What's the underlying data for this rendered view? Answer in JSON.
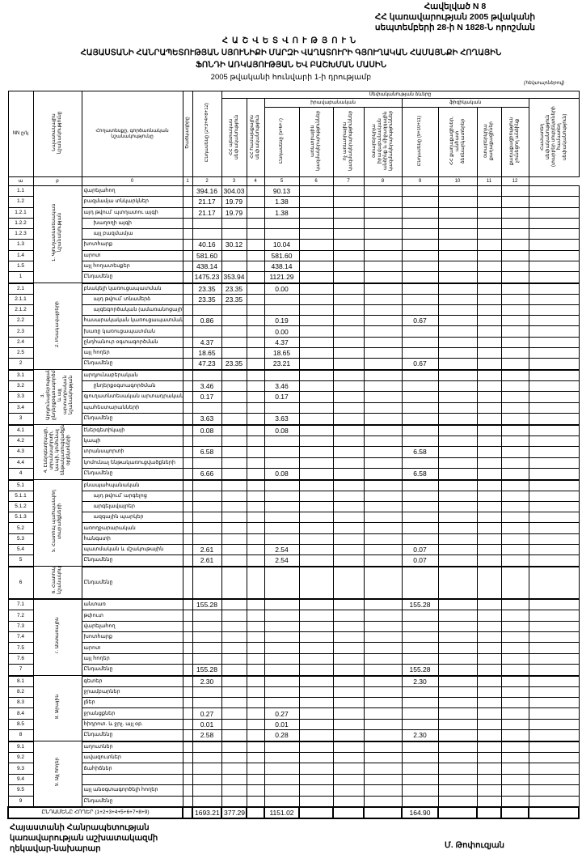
{
  "annex": {
    "line1": "Հավելված N 8",
    "line2": "ՀՀ կառավարության 2005 թվականի",
    "line3": "սեպտեմբերի 28-ի N 1828-Ն որոշման"
  },
  "title": {
    "main": "ՀԱՇՎԵՏՎՈՒԹՅՈՒՆ",
    "line2": "ՀԱՅԱՍՏԱՆԻ ՀԱՆՐԱՊԵՏՈՒԹՅԱՆ ՍՅՈՒՆԻՔԻ ՄԱՐԶԻ ՎԱՂԱՏՈՒՐԻ ԳՅՈՒՂԱԿԱՆ ՀԱՄԱՅՆՔԻ ՀՈՂԱՅԻՆ",
    "line3": "ՖՈՆԴԻ ԱՌԿԱՅՈՒԹՅԱՆ ԵՎ ԲԱՇԽՄԱՆ ՄԱՍԻՆ",
    "date": "2005 թվականի հունվարի 1-ի դրությամբ",
    "unit": "(հեկտարներով)"
  },
  "header": {
    "nn": "NN ը/կ",
    "purpose": "Նպատակային նշանակությունը",
    "landtype": "Հողատեսքը, գործառնական նշանակությունը",
    "c0": "Ծածկագիրը",
    "c1": "Ընդամենը (2+3+4+8+12)",
    "ownership": "Սեփականության ձևերը",
    "c2": "ՀՀ պետական սեփականություն",
    "c3": "ՀՀ համայնքային սեփականություն",
    "legal": "իրավաբանական",
    "physical": "ֆիզիկական",
    "c4": "Ընդամենը (5+6+7)",
    "c5": "առևտրային կազմակերպություններ",
    "c6": "ոչ առևտրային կազմակերպություններ",
    "c7": "օտարերկրյա իրավաբանական անձինք և միջազգային կազմակերպություններ",
    "c8": "Ընդամենը (9+10+11)",
    "c9": "ՀՀ քաղաքացիներ, անհատ ձեռնարկատերեր",
    "c10": "օտարերկրյա քաղաքացիներ",
    "c11": "քաղաքացիություն չունեցող անձինք",
    "c12": "Համատեղ սեփականություն (տարբեր սուբյեկտների համատեղ սեփականություն)",
    "numbers": [
      "ա",
      "բ",
      "0",
      "1",
      "2",
      "3",
      "4",
      "5",
      "6",
      "7",
      "8",
      "9",
      "10",
      "11",
      "12"
    ]
  },
  "groups": [
    {
      "label": "1. Գյուղատնտեսական նշանակության",
      "rows": [
        {
          "num": "1.1",
          "name": "վարելահող",
          "v": {
            "1": "394.16",
            "2": "304.03",
            "4": "90.13"
          }
        },
        {
          "num": "1.2",
          "name": "բազմամյա տնկարկներ",
          "v": {
            "1": "21.17",
            "2": "19.79",
            "4": "1.38"
          }
        },
        {
          "num": "1.2.1",
          "name": "այդ թվում՝ պտղատու այգի",
          "v": {
            "1": "21.17",
            "2": "19.79",
            "4": "1.38"
          }
        },
        {
          "num": "1.2.2",
          "name": "խաղողի այգի",
          "indent": true,
          "v": {}
        },
        {
          "num": "1.2.3",
          "name": "այլ բազմամյա",
          "indent": true,
          "v": {}
        },
        {
          "num": "1.3",
          "name": "խոտհարք",
          "v": {
            "1": "40.16",
            "2": "30.12",
            "4": "10.04"
          }
        },
        {
          "num": "1.4",
          "name": "արոտ",
          "v": {
            "1": "581.60",
            "4": "581.60"
          }
        },
        {
          "num": "1.5",
          "name": "այլ հողատեսքեր",
          "v": {
            "1": "438.14",
            "4": "438.14"
          }
        },
        {
          "num": "1",
          "name": "Ընդամենը",
          "v": {
            "1": "1475.23",
            "2": "353.94",
            "4": "1121.29"
          }
        }
      ]
    },
    {
      "label": "2. Բնակավայրերի",
      "rows": [
        {
          "num": "2.1",
          "name": "բնակելի կառուցապատման",
          "v": {
            "1": "23.35",
            "2": "23.35",
            "4": "0.00"
          }
        },
        {
          "num": "2.1.1",
          "name": "այդ թվում՝ տնամերձ",
          "indent": true,
          "v": {
            "1": "23.35",
            "2": "23.35"
          }
        },
        {
          "num": "2.1.2",
          "name": "այգեգործական (ամառանոցային)",
          "indent": true,
          "v": {}
        },
        {
          "num": "2.2",
          "name": "հասարակական կառուցապատման",
          "v": {
            "1": "0.86",
            "4": "0.19",
            "8": "0.67"
          }
        },
        {
          "num": "2.3",
          "name": "խառը կառուցապատման",
          "v": {
            "4": "0.00"
          }
        },
        {
          "num": "2.4",
          "name": "ընդհանուր օգտագործման",
          "v": {
            "1": "4.37",
            "4": "4.37"
          }
        },
        {
          "num": "2.5",
          "name": "այլ հողեր",
          "v": {
            "1": "18.65",
            "4": "18.65"
          }
        },
        {
          "num": "2",
          "name": "Ընդամենը",
          "v": {
            "1": "47.23",
            "2": "23.35",
            "4": "23.21",
            "8": "0.67"
          }
        }
      ]
    },
    {
      "label": "3. Արդյունաբերության, ընդերքօգտագործման և այլ արտադրական նշանակության",
      "rows": [
        {
          "num": "3.1",
          "name": "արդյունաբերական",
          "v": {}
        },
        {
          "num": "3.2",
          "name": "ընդերքօգտագործման",
          "indent": true,
          "v": {
            "1": "3.46",
            "4": "3.46"
          }
        },
        {
          "num": "3.3",
          "name": "գյուղատնտեսական արտադրական",
          "v": {
            "1": "0.17",
            "4": "0.17"
          }
        },
        {
          "num": "3.4",
          "name": "պահեստարանների",
          "v": {}
        },
        {
          "num": "3",
          "name": "Ընդամենը",
          "v": {
            "1": "3.63",
            "4": "3.63"
          }
        }
      ]
    },
    {
      "label": "4. Էներգետիկայի, տրանսպորտի, կապի, կոմունալ ենթակառուցվածքների օբյեկտների",
      "rows": [
        {
          "num": "4.1",
          "name": "էներգետիկայի",
          "v": {
            "1": "0.08",
            "4": "0.08"
          }
        },
        {
          "num": "4.2",
          "name": "կապի",
          "v": {}
        },
        {
          "num": "4.3",
          "name": "տրանսպորտի",
          "v": {
            "1": "6.58",
            "8": "6.58"
          }
        },
        {
          "num": "4.4",
          "name": "կոմունալ ենթակառուցվածքների",
          "v": {}
        },
        {
          "num": "4",
          "name": "Ընդամենը",
          "v": {
            "1": "6.66",
            "4": "0.08",
            "8": "6.58"
          }
        }
      ]
    },
    {
      "label": "5. Հատուկ պահպանվող տարածքների",
      "rows": [
        {
          "num": "5.1",
          "name": "բնապահպանական",
          "v": {}
        },
        {
          "num": "5.1.1",
          "name": "այդ թվում՝ արգելոց",
          "indent": true,
          "v": {}
        },
        {
          "num": "5.1.2",
          "name": "արգելավայրեր",
          "indent": true,
          "v": {}
        },
        {
          "num": "5.1.3",
          "name": "ազգային պարկեր",
          "indent": true,
          "v": {}
        },
        {
          "num": "5.2",
          "name": "առողջարարական",
          "v": {}
        },
        {
          "num": "5.3",
          "name": "հանգստի",
          "v": {}
        },
        {
          "num": "5.4",
          "name": "պատմական և մշակութային",
          "v": {
            "1": "2.61",
            "4": "2.54",
            "8": "0.07"
          }
        },
        {
          "num": "5",
          "name": "Ընդամենը",
          "v": {
            "1": "2.61",
            "4": "2.54",
            "8": "0.07"
          }
        }
      ]
    },
    {
      "label": "6. Հատուկ նշանակության",
      "tall": true,
      "rows": [
        {
          "num": "6",
          "name": "Ընդամենը",
          "v": {}
        }
      ]
    },
    {
      "label": "7. Անտառային",
      "rows": [
        {
          "num": "7.1",
          "name": "անտառ",
          "v": {
            "1": "155.28",
            "8": "155.28"
          }
        },
        {
          "num": "7.2",
          "name": "թփուտ",
          "v": {}
        },
        {
          "num": "7.3",
          "name": "վարելահող",
          "v": {}
        },
        {
          "num": "7.4",
          "name": "խոտհարք",
          "v": {}
        },
        {
          "num": "7.5",
          "name": "արոտ",
          "v": {}
        },
        {
          "num": "7.6",
          "name": "այլ հողեր",
          "v": {}
        },
        {
          "num": "7",
          "name": "Ընդամենը",
          "v": {
            "1": "155.28",
            "8": "155.28"
          }
        }
      ]
    },
    {
      "label": "8. Ջրային",
      "rows": [
        {
          "num": "8.1",
          "name": "գետեր",
          "v": {
            "1": "2.30",
            "8": "2.30"
          }
        },
        {
          "num": "8.2",
          "name": "ջրամբարներ",
          "v": {}
        },
        {
          "num": "8.3",
          "name": "լճեր",
          "v": {}
        },
        {
          "num": "8.4",
          "name": "ջրանցքներ",
          "v": {
            "1": "0.27",
            "4": "0.27"
          }
        },
        {
          "num": "8.5",
          "name": "հիդրոտ. և ջրչ. այլ օբ.",
          "v": {
            "1": "0.01",
            "4": "0.01"
          }
        },
        {
          "num": "8",
          "name": "Ընդամենը",
          "v": {
            "1": "2.58",
            "4": "0.28",
            "8": "2.30"
          }
        }
      ]
    },
    {
      "label": "9. Այլ հողեր",
      "rows": [
        {
          "num": "9.1",
          "name": "աղուտներ",
          "v": {}
        },
        {
          "num": "9.2",
          "name": "ավազուտներ",
          "v": {}
        },
        {
          "num": "9.3",
          "name": "ճահիճներ",
          "v": {}
        },
        {
          "num": "9.4",
          "name": "",
          "v": {}
        },
        {
          "num": "9.5",
          "name": "այլ անօգտագործելի հողեր",
          "v": {}
        },
        {
          "num": "9",
          "name": "Ընդամենը",
          "v": {}
        }
      ]
    }
  ],
  "total": {
    "label": "ԸՆԴԱՄԵՆԸ ՀՈՂԵՐ (1+2+3+4+5+6+7+8+9)",
    "v": {
      "1": "1693.21",
      "2": "377.29",
      "4": "1151.02",
      "8": "164.90"
    }
  },
  "footer": {
    "line1": "Հայաստանի Հանրապետության",
    "line2": "կառավարության աշխատակազմի",
    "line3": "ղեկավար-նախարար",
    "signature": "Մ. Թոփուզյան"
  }
}
